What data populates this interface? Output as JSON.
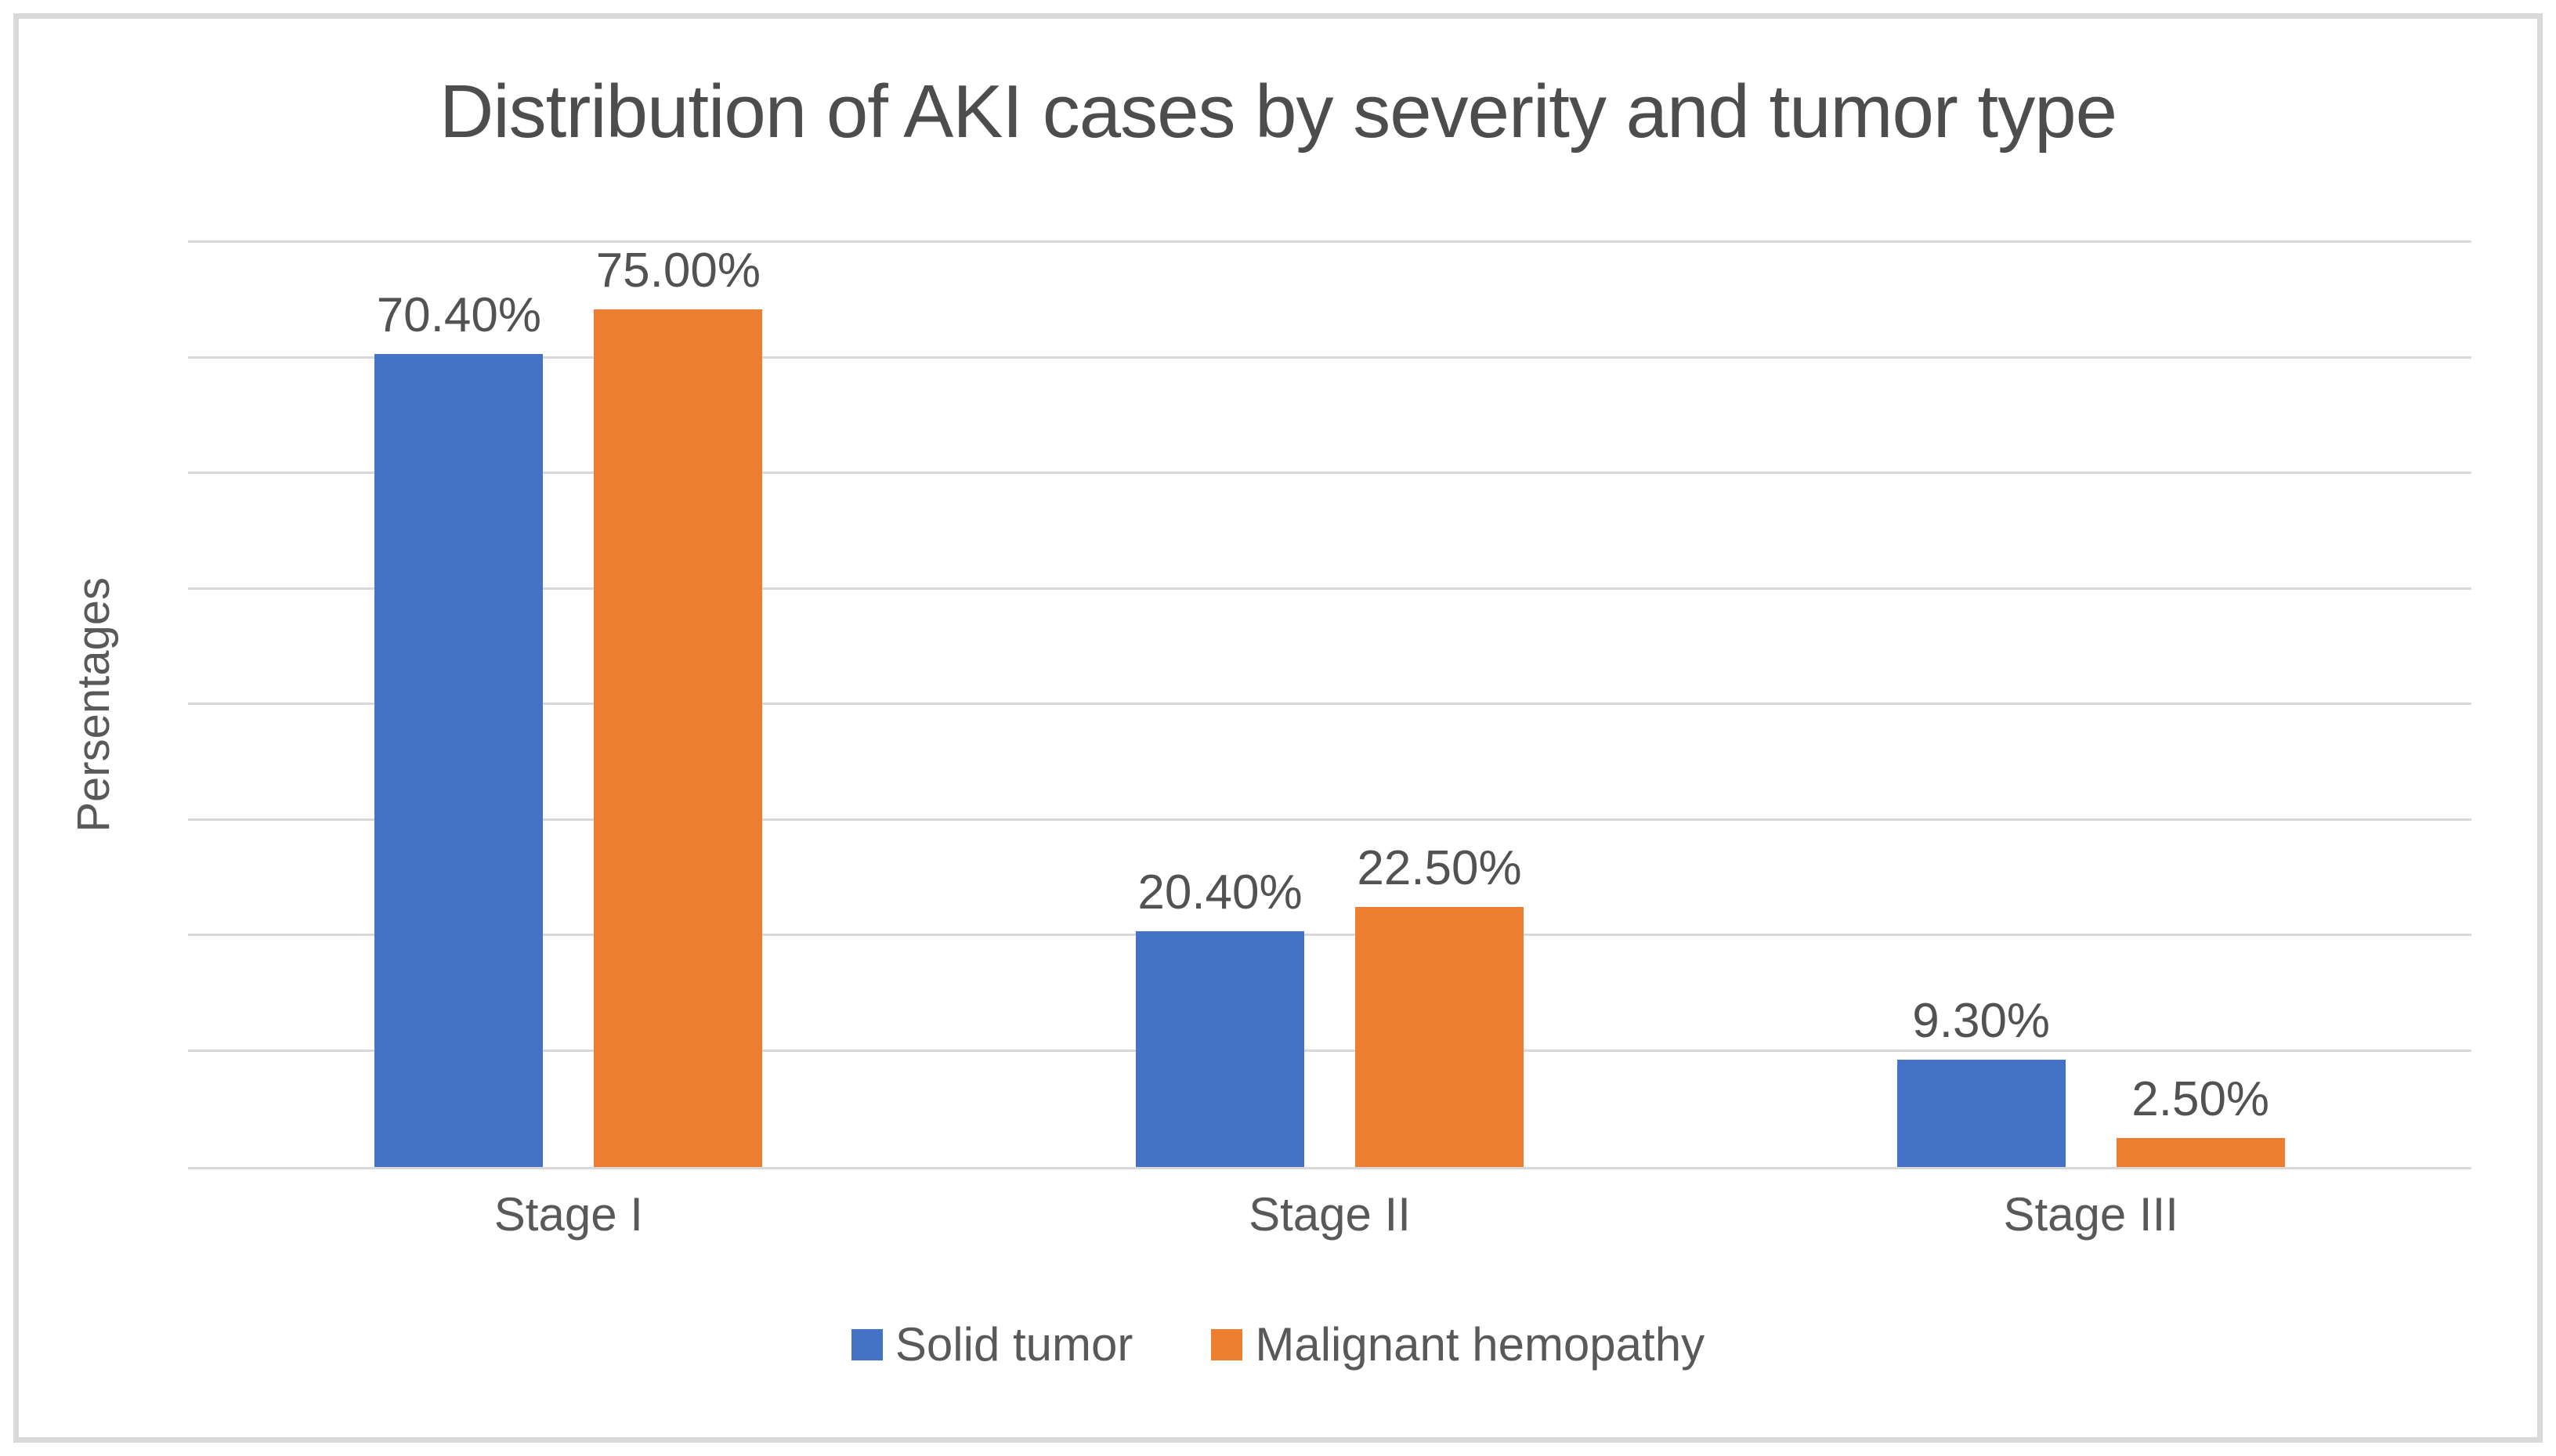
{
  "window": {
    "background": "#FFFFFF",
    "border_color": "#D9D9D9"
  },
  "chart_data": {
    "type": "bar",
    "title": "Distribution of AKI cases by severity and tumor type",
    "ylabel": "Persentages",
    "xlabel": "",
    "categories": [
      "Stage I",
      "Stage II",
      "Stage III"
    ],
    "series": [
      {
        "name": "Solid tumor",
        "color": "#4472C4",
        "values": [
          70.4,
          20.4,
          9.3
        ],
        "labels": [
          "70.40%",
          "20.40%",
          "9.30%"
        ]
      },
      {
        "name": "Malignant hemopathy",
        "color": "#ED7D31",
        "values": [
          75.0,
          22.5,
          2.5
        ],
        "labels": [
          "75.00%",
          "22.50%",
          "2.50%"
        ]
      }
    ],
    "ylim": [
      0,
      80
    ],
    "grid_step": 10,
    "grid": "on",
    "y_tick_labels_visible": false,
    "legend_position": "bottom",
    "colors": {
      "gridline": "#D9D9D9",
      "axis_line": "#D9D9D9",
      "label_text": "#595959",
      "title_text": "#4D4D4D",
      "border": "#D9D9D9"
    }
  }
}
